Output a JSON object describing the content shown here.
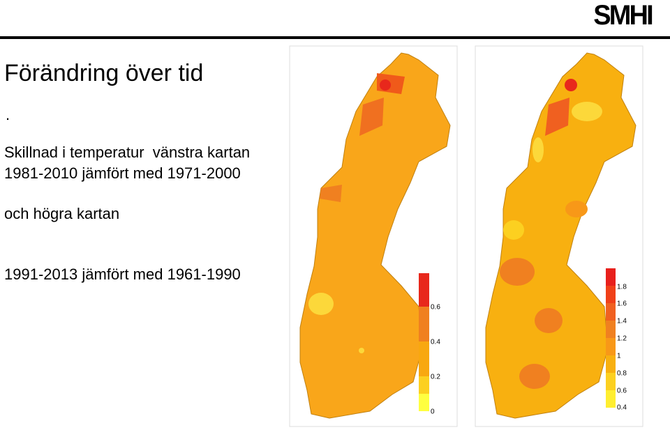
{
  "header": {
    "title": "Förändring över tid",
    "logo": "SMHI"
  },
  "body": {
    "dot": ".",
    "lines": [
      "Skillnad i temperatur  vänstra kartan",
      "1981-2010 jämfört med 1971-2000",
      "och högra kartan",
      "1991-2013 jämfört med 1961-1990"
    ]
  },
  "maps": [
    {
      "legend": [
        "0.6",
        "0.4",
        "0.2",
        "0"
      ]
    },
    {
      "legend": [
        "1.8",
        "1.6",
        "1.4",
        "1.2",
        "1",
        "0.8",
        "0.6",
        "0.4"
      ]
    }
  ]
}
